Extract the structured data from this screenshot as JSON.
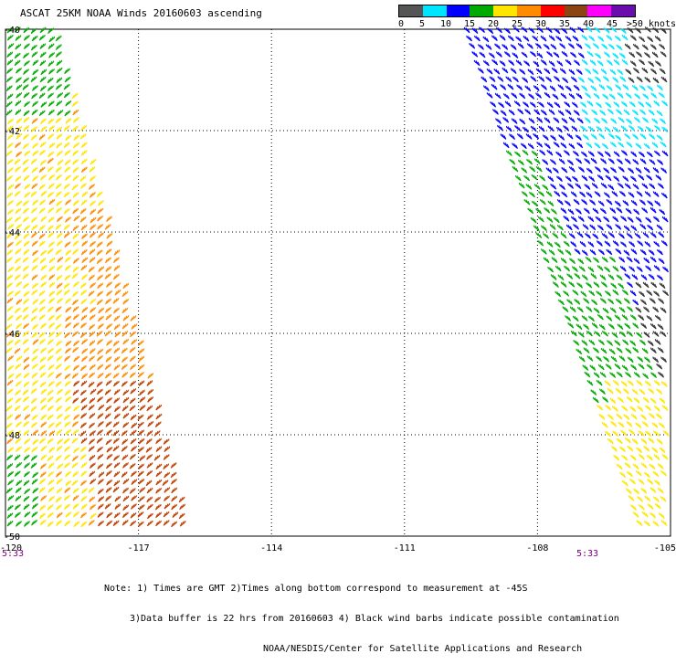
{
  "title": "ASCAT 25KM NOAA Winds 20160603 ascending",
  "legend": {
    "colors": [
      "#555555",
      "#00e5ff",
      "#0000ff",
      "#00aa00",
      "#ffe600",
      "#ff8c00",
      "#ff0000",
      "#8b4513",
      "#ff00ff",
      "#6a0dad"
    ],
    "labels": [
      "0",
      "5",
      "10",
      "15",
      "20",
      "25",
      "30",
      "35",
      "40",
      "45",
      ">50 knots"
    ]
  },
  "map": {
    "lon_labels": [
      "-120",
      "-117",
      "-114",
      "-111",
      "-108",
      "-105"
    ],
    "lat_labels": [
      "-40",
      "-42",
      "-44",
      "-46",
      "-48",
      "-50"
    ],
    "lon_range": [
      -120,
      -105
    ],
    "lat_range": [
      -50,
      -40
    ],
    "grid": "dotted"
  },
  "times": [
    "5:33",
    "5:33"
  ],
  "notes": [
    "Note: 1) Times are GMT 2)Times along bottom correspond to measurement at -45S",
    "3)Data buffer is 22 hrs from 20160603 4) Black wind barbs indicate possible contamination",
    "NOAA/NESDIS/Center for Satellite Applications and Research"
  ]
}
